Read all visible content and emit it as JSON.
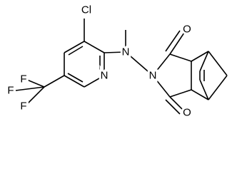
{
  "atoms": [
    {
      "label": "Cl"
    },
    {
      "label": "N"
    },
    {
      "label": "N"
    },
    {
      "label": "N"
    },
    {
      "label": "O"
    },
    {
      "label": "O"
    },
    {
      "label": "F"
    },
    {
      "label": "F"
    },
    {
      "label": "F"
    }
  ]
}
